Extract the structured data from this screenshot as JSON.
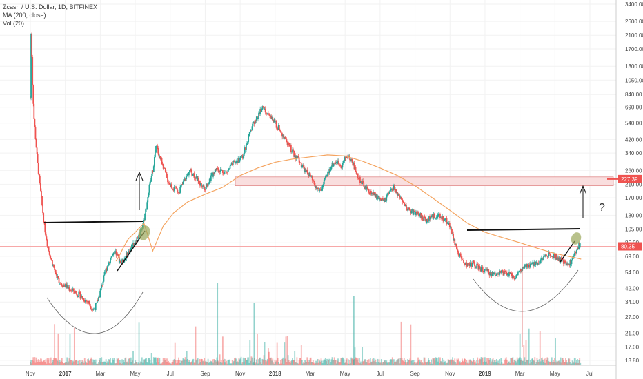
{
  "legend": {
    "symbol": "Zcash / U.S. Dollar, 1D, BITFINEX",
    "ma": "MA (200, close)",
    "vol": "Vol (20)"
  },
  "colors": {
    "up": "#26a69a",
    "down": "#ef5350",
    "ma": "#f4a460",
    "current_price_line": "#f7a8a8",
    "resistance_zone": "#f9dede",
    "annotation": "#111111",
    "highlight": "#9aa65a",
    "tag_price": "#ef5350"
  },
  "chart_data": {
    "type": "candlestick",
    "title": "Zcash / U.S. Dollar, 1D, BITFINEX",
    "indicators": [
      "MA (200, close)",
      "Vol (20)"
    ],
    "y_scale": "log",
    "ylim": [
      12,
      3400
    ],
    "y_ticks": [
      "3400.00",
      "2600.00",
      "2100.00",
      "1700.00",
      "1300.00",
      "1050.00",
      "840.00",
      "690.00",
      "540.00",
      "420.00",
      "340.00",
      "260.00",
      "210.00",
      "170.00",
      "130.00",
      "105.00",
      "85.00",
      "69.00",
      "54.00",
      "42.00",
      "34.00",
      "27.00",
      "21.00",
      "17.00",
      "13.80"
    ],
    "y_tick_values": [
      3400,
      2600,
      2100,
      1700,
      1300,
      1050,
      840,
      690,
      540,
      420,
      340,
      260,
      210,
      170,
      130,
      105,
      85,
      69,
      54,
      42,
      34,
      27,
      21,
      17,
      13.8
    ],
    "x_ticks": [
      "Nov",
      "2017",
      "Mar",
      "May",
      "Jul",
      "Sep",
      "Nov",
      "2018",
      "Mar",
      "May",
      "Jul",
      "Sep",
      "Nov",
      "2019",
      "Mar",
      "May",
      "Jul"
    ],
    "x_tick_months": [
      0,
      2,
      4,
      6,
      8,
      10,
      12,
      14,
      16,
      18,
      20,
      22,
      24,
      26,
      28,
      30,
      32
    ],
    "x_range_months": [
      0,
      33.5
    ],
    "current_price": "80.35",
    "current_price_value": 80.35,
    "zone_price": "227.39",
    "zone_price_value": 227.39,
    "price_path": [
      [
        0.0,
        800
      ],
      [
        0.05,
        2600
      ],
      [
        0.1,
        1200
      ],
      [
        0.2,
        600
      ],
      [
        0.4,
        300
      ],
      [
        0.6,
        180
      ],
      [
        0.8,
        110
      ],
      [
        1.0,
        80
      ],
      [
        1.2,
        65
      ],
      [
        1.4,
        55
      ],
      [
        1.6,
        48
      ],
      [
        1.8,
        45
      ],
      [
        2.0,
        44
      ],
      [
        2.2,
        42
      ],
      [
        2.5,
        40
      ],
      [
        2.8,
        38
      ],
      [
        3.0,
        36
      ],
      [
        3.3,
        34
      ],
      [
        3.6,
        30
      ],
      [
        3.8,
        33
      ],
      [
        4.0,
        40
      ],
      [
        4.3,
        55
      ],
      [
        4.6,
        68
      ],
      [
        4.9,
        72
      ],
      [
        5.2,
        62
      ],
      [
        5.5,
        70
      ],
      [
        5.8,
        80
      ],
      [
        6.0,
        88
      ],
      [
        6.2,
        95
      ],
      [
        6.4,
        110
      ],
      [
        6.6,
        140
      ],
      [
        6.8,
        200
      ],
      [
        7.0,
        260
      ],
      [
        7.2,
        380
      ],
      [
        7.4,
        320
      ],
      [
        7.6,
        280
      ],
      [
        7.8,
        230
      ],
      [
        8.0,
        210
      ],
      [
        8.2,
        195
      ],
      [
        8.5,
        190
      ],
      [
        8.8,
        220
      ],
      [
        9.1,
        260
      ],
      [
        9.4,
        240
      ],
      [
        9.7,
        210
      ],
      [
        10.0,
        200
      ],
      [
        10.3,
        230
      ],
      [
        10.6,
        270
      ],
      [
        10.9,
        260
      ],
      [
        11.2,
        250
      ],
      [
        11.5,
        280
      ],
      [
        11.8,
        300
      ],
      [
        12.1,
        320
      ],
      [
        12.4,
        400
      ],
      [
        12.7,
        520
      ],
      [
        13.0,
        600
      ],
      [
        13.3,
        700
      ],
      [
        13.6,
        620
      ],
      [
        13.9,
        560
      ],
      [
        14.2,
        500
      ],
      [
        14.5,
        440
      ],
      [
        14.8,
        380
      ],
      [
        15.1,
        330
      ],
      [
        15.4,
        300
      ],
      [
        15.7,
        260
      ],
      [
        16.0,
        240
      ],
      [
        16.3,
        200
      ],
      [
        16.6,
        190
      ],
      [
        16.9,
        230
      ],
      [
        17.2,
        280
      ],
      [
        17.5,
        300
      ],
      [
        17.8,
        280
      ],
      [
        18.1,
        330
      ],
      [
        18.4,
        300
      ],
      [
        18.7,
        240
      ],
      [
        19.0,
        210
      ],
      [
        19.3,
        190
      ],
      [
        19.6,
        180
      ],
      [
        19.9,
        170
      ],
      [
        20.2,
        160
      ],
      [
        20.5,
        180
      ],
      [
        20.8,
        200
      ],
      [
        21.1,
        170
      ],
      [
        21.4,
        150
      ],
      [
        21.7,
        140
      ],
      [
        22.0,
        135
      ],
      [
        22.3,
        130
      ],
      [
        22.6,
        120
      ],
      [
        22.9,
        125
      ],
      [
        23.2,
        130
      ],
      [
        23.5,
        125
      ],
      [
        23.8,
        120
      ],
      [
        24.0,
        110
      ],
      [
        24.2,
        90
      ],
      [
        24.4,
        75
      ],
      [
        24.7,
        65
      ],
      [
        25.0,
        60
      ],
      [
        25.3,
        62
      ],
      [
        25.6,
        58
      ],
      [
        25.9,
        56
      ],
      [
        26.2,
        54
      ],
      [
        26.5,
        52
      ],
      [
        26.8,
        54
      ],
      [
        27.1,
        53
      ],
      [
        27.4,
        52
      ],
      [
        27.7,
        50
      ],
      [
        28.0,
        55
      ],
      [
        28.3,
        58
      ],
      [
        28.6,
        60
      ],
      [
        28.9,
        62
      ],
      [
        29.2,
        65
      ],
      [
        29.5,
        70
      ],
      [
        29.8,
        72
      ],
      [
        30.1,
        68
      ],
      [
        30.4,
        64
      ],
      [
        30.7,
        60
      ],
      [
        31.0,
        65
      ],
      [
        31.2,
        75
      ],
      [
        31.4,
        82
      ],
      [
        31.5,
        80.35
      ]
    ],
    "ma_path": [
      [
        4.9,
        64
      ],
      [
        5.1,
        70
      ],
      [
        5.3,
        78
      ],
      [
        5.6,
        90
      ],
      [
        6.0,
        100
      ],
      [
        6.5,
        115
      ],
      [
        7.0,
        75
      ],
      [
        7.2,
        85
      ],
      [
        7.6,
        110
      ],
      [
        8.2,
        135
      ],
      [
        9.0,
        160
      ],
      [
        10.0,
        180
      ],
      [
        11.0,
        200
      ],
      [
        12.0,
        240
      ],
      [
        13.0,
        270
      ],
      [
        14.0,
        295
      ],
      [
        15.0,
        310
      ],
      [
        16.0,
        320
      ],
      [
        17.0,
        330
      ],
      [
        18.0,
        325
      ],
      [
        19.0,
        300
      ],
      [
        20.0,
        270
      ],
      [
        21.0,
        240
      ],
      [
        22.0,
        205
      ],
      [
        23.0,
        170
      ],
      [
        24.0,
        140
      ],
      [
        25.0,
        115
      ],
      [
        26.0,
        100
      ],
      [
        27.0,
        92
      ],
      [
        28.0,
        85
      ],
      [
        29.0,
        78
      ],
      [
        30.0,
        72
      ],
      [
        31.0,
        68
      ],
      [
        31.5,
        66
      ]
    ]
  },
  "annotations": {
    "question_mark": "?"
  }
}
